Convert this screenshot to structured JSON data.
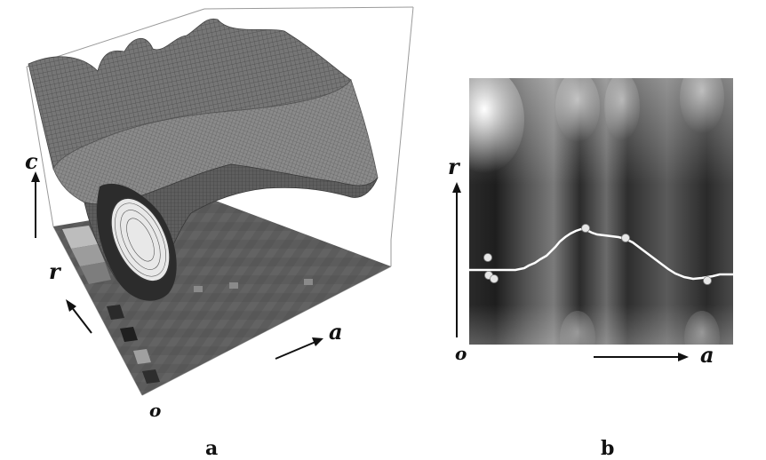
{
  "panel_a": {
    "axis_c": "c",
    "axis_r": "r",
    "axis_a": "a",
    "origin": "o",
    "caption": "a"
  },
  "panel_b": {
    "axis_r": "r",
    "axis_a": "a",
    "origin": "o",
    "caption": "b"
  },
  "colors": {
    "mesh": "#6e6e6e",
    "mesh_dark": "#3a3a3a",
    "floor": "#5a5a5a",
    "curve": "#ffffff"
  }
}
